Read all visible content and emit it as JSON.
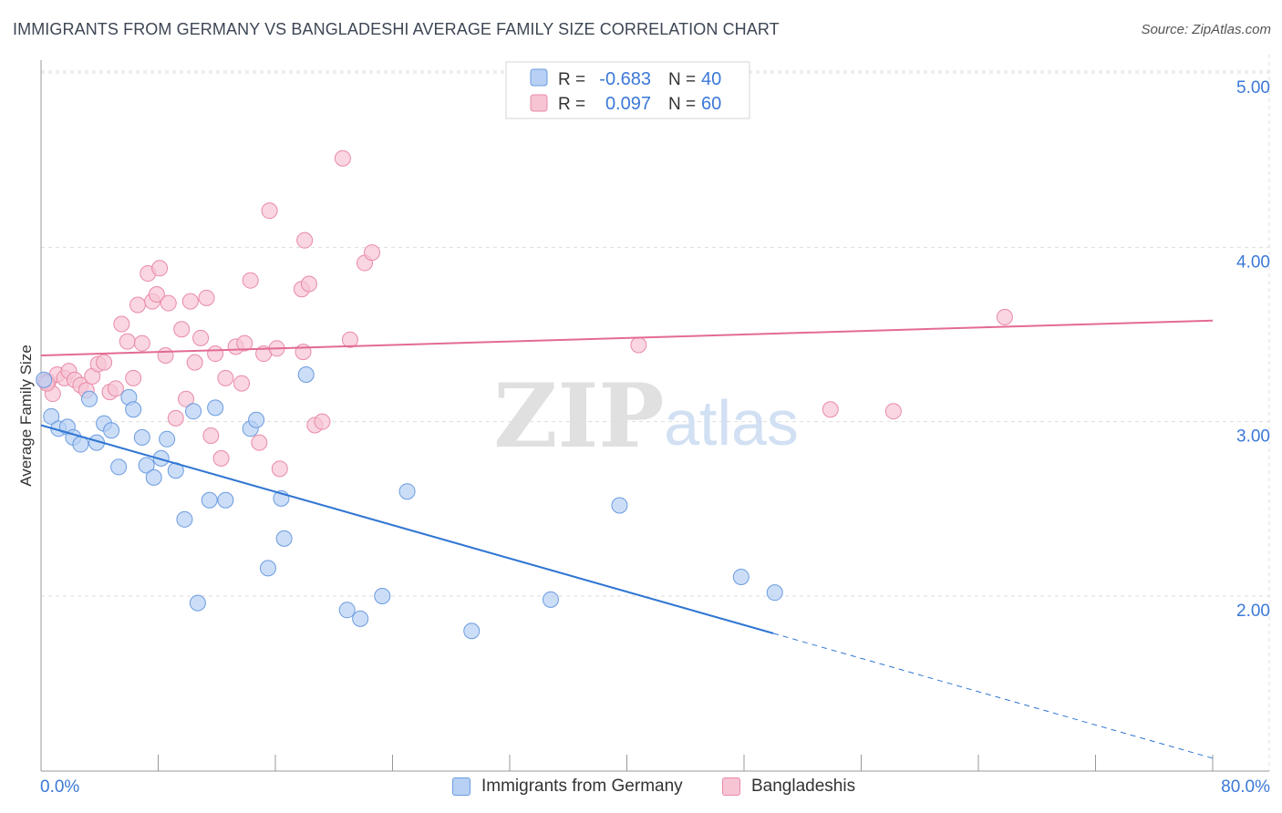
{
  "header": {
    "title": "IMMIGRANTS FROM GERMANY VS BANGLADESHI AVERAGE FAMILY SIZE CORRELATION CHART",
    "source": "Source: ZipAtlas.com"
  },
  "watermark": {
    "zip": "ZIP",
    "atlas": "atlas"
  },
  "legend_top": {
    "rows": [
      {
        "r_label": "R =",
        "r_value": "-0.683",
        "n_label": "N =",
        "n_value": "40"
      },
      {
        "r_label": "R =",
        "r_value": "0.097",
        "n_label": "N =",
        "n_value": "60"
      }
    ]
  },
  "colors": {
    "germany_fill": "#b7d0f3",
    "germany_stroke": "#6a9be0",
    "germany_line": "#2f76d2",
    "bangla_fill": "#f7c4d4",
    "bangla_stroke": "#e98aa8",
    "bangla_line": "#e36b93",
    "value_text": "#3a78d8",
    "grid": "#dddddd"
  },
  "chart_data": {
    "type": "scatter",
    "title": "IMMIGRANTS FROM GERMANY VS BANGLADESHI AVERAGE FAMILY SIZE CORRELATION CHART",
    "xlabel": "",
    "ylabel": "Average Family Size",
    "xlim": [
      0,
      80
    ],
    "ylim": [
      1.0,
      5.1
    ],
    "x_tick_labels": [
      "0.0%",
      "80.0%"
    ],
    "y_ticks": [
      2.0,
      3.0,
      4.0,
      5.0
    ],
    "y_tick_labels": [
      "2.00",
      "3.00",
      "4.00",
      "5.00"
    ],
    "grid": true,
    "legend": "top-center",
    "series": [
      {
        "name": "Immigrants from Germany",
        "points": [
          [
            0.2,
            3.24
          ],
          [
            0.7,
            3.03
          ],
          [
            1.2,
            2.96
          ],
          [
            1.8,
            2.97
          ],
          [
            2.2,
            2.91
          ],
          [
            2.7,
            2.87
          ],
          [
            3.3,
            3.13
          ],
          [
            3.8,
            2.88
          ],
          [
            4.3,
            2.99
          ],
          [
            4.8,
            2.95
          ],
          [
            5.3,
            2.74
          ],
          [
            6.0,
            3.14
          ],
          [
            6.3,
            3.07
          ],
          [
            6.9,
            2.91
          ],
          [
            7.2,
            2.75
          ],
          [
            7.7,
            2.68
          ],
          [
            8.2,
            2.79
          ],
          [
            8.6,
            2.9
          ],
          [
            9.2,
            2.72
          ],
          [
            9.8,
            2.44
          ],
          [
            10.4,
            3.06
          ],
          [
            10.7,
            1.96
          ],
          [
            11.5,
            2.55
          ],
          [
            11.9,
            3.08
          ],
          [
            12.6,
            2.55
          ],
          [
            14.3,
            2.96
          ],
          [
            14.7,
            3.01
          ],
          [
            15.5,
            2.16
          ],
          [
            16.4,
            2.56
          ],
          [
            16.6,
            2.33
          ],
          [
            18.1,
            3.27
          ],
          [
            20.9,
            1.92
          ],
          [
            21.8,
            1.87
          ],
          [
            23.3,
            2.0
          ],
          [
            25.0,
            2.6
          ],
          [
            29.4,
            1.8
          ],
          [
            34.8,
            1.98
          ],
          [
            39.5,
            2.52
          ],
          [
            47.8,
            2.11
          ],
          [
            50.1,
            2.02
          ]
        ]
      },
      {
        "name": "Bangladeshis",
        "points": [
          [
            0.3,
            3.23
          ],
          [
            0.5,
            3.23
          ],
          [
            0.8,
            3.16
          ],
          [
            1.1,
            3.27
          ],
          [
            1.6,
            3.25
          ],
          [
            1.9,
            3.29
          ],
          [
            2.3,
            3.24
          ],
          [
            2.7,
            3.21
          ],
          [
            3.1,
            3.18
          ],
          [
            3.5,
            3.26
          ],
          [
            3.9,
            3.33
          ],
          [
            4.3,
            3.34
          ],
          [
            4.7,
            3.17
          ],
          [
            5.1,
            3.19
          ],
          [
            5.5,
            3.56
          ],
          [
            5.9,
            3.46
          ],
          [
            6.3,
            3.25
          ],
          [
            6.6,
            3.67
          ],
          [
            6.9,
            3.45
          ],
          [
            7.3,
            3.85
          ],
          [
            7.6,
            3.69
          ],
          [
            7.9,
            3.73
          ],
          [
            8.1,
            3.88
          ],
          [
            8.5,
            3.38
          ],
          [
            8.7,
            3.68
          ],
          [
            9.2,
            3.02
          ],
          [
            9.6,
            3.53
          ],
          [
            9.9,
            3.13
          ],
          [
            10.2,
            3.69
          ],
          [
            10.5,
            3.34
          ],
          [
            10.9,
            3.48
          ],
          [
            11.3,
            3.71
          ],
          [
            11.6,
            2.92
          ],
          [
            11.9,
            3.39
          ],
          [
            12.3,
            2.79
          ],
          [
            12.6,
            3.25
          ],
          [
            13.3,
            3.43
          ],
          [
            13.7,
            3.22
          ],
          [
            13.9,
            3.45
          ],
          [
            14.3,
            3.81
          ],
          [
            14.9,
            2.88
          ],
          [
            15.2,
            3.39
          ],
          [
            15.6,
            4.21
          ],
          [
            16.1,
            3.42
          ],
          [
            16.3,
            2.73
          ],
          [
            17.8,
            3.76
          ],
          [
            17.9,
            3.4
          ],
          [
            18.0,
            4.04
          ],
          [
            18.3,
            3.79
          ],
          [
            18.7,
            2.98
          ],
          [
            19.2,
            3.0
          ],
          [
            20.6,
            4.51
          ],
          [
            21.1,
            3.47
          ],
          [
            22.1,
            3.91
          ],
          [
            22.6,
            3.97
          ],
          [
            40.8,
            3.44
          ],
          [
            53.9,
            3.07
          ],
          [
            58.2,
            3.06
          ],
          [
            65.8,
            3.6
          ],
          [
            0.4,
            3.22
          ]
        ]
      }
    ],
    "trendlines": [
      {
        "series": "Immigrants from Germany",
        "start": [
          0,
          2.98
        ],
        "end": [
          80,
          1.07
        ],
        "solid_until_x": 50
      },
      {
        "series": "Bangladeshis",
        "start": [
          0,
          3.38
        ],
        "end": [
          80,
          3.58
        ]
      }
    ]
  },
  "legend_bottom": {
    "items": [
      {
        "label": "Immigrants from Germany"
      },
      {
        "label": "Bangladeshis"
      }
    ]
  }
}
